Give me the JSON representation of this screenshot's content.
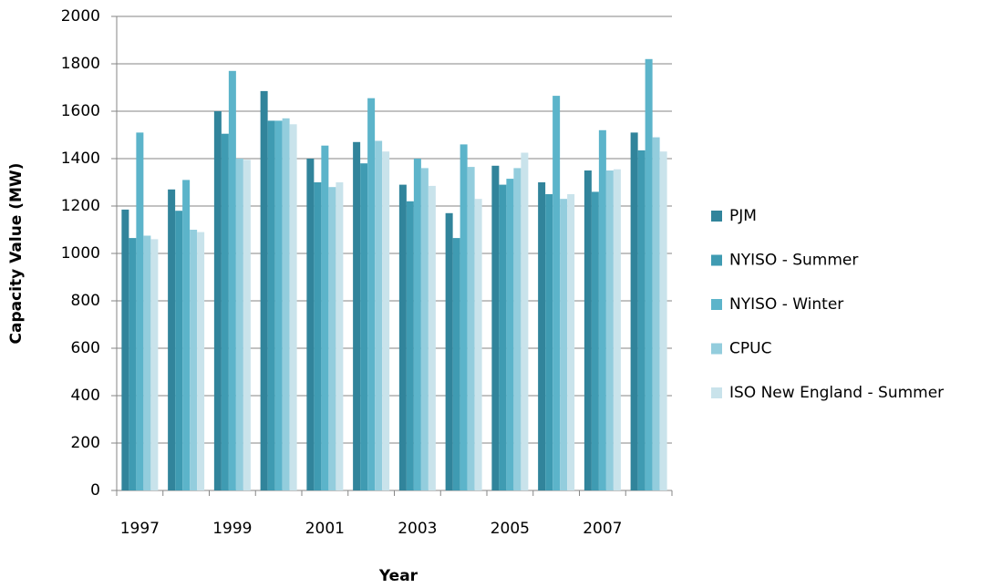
{
  "chart_data": {
    "type": "bar",
    "x_label": "Year",
    "y_label": "Capacity Value (MW)",
    "categories": [
      "1997",
      null,
      "1999",
      null,
      "2001",
      null,
      "2003",
      null,
      "2005",
      null,
      "2007",
      null
    ],
    "series": [
      {
        "name": "PJM",
        "color": "#31849b",
        "values": [
          1185,
          1270,
          1600,
          1685,
          1400,
          1470,
          1290,
          1170,
          1370,
          1300,
          1350,
          1510
        ]
      },
      {
        "name": "NYISO - Summer",
        "color": "#3f9bb2",
        "values": [
          1065,
          1180,
          1505,
          1560,
          1300,
          1380,
          1220,
          1065,
          1290,
          1250,
          1260,
          1435
        ]
      },
      {
        "name": "NYISO - Winter",
        "color": "#5cb4ca",
        "values": [
          1510,
          1310,
          1770,
          1560,
          1455,
          1655,
          1400,
          1460,
          1315,
          1665,
          1520,
          1820
        ]
      },
      {
        "name": "CPUC",
        "color": "#93cddd",
        "values": [
          1075,
          1100,
          1400,
          1570,
          1280,
          1475,
          1360,
          1365,
          1360,
          1230,
          1350,
          1490
        ]
      },
      {
        "name": "ISO New England - Summer",
        "color": "#c9e3eb",
        "values": [
          1060,
          1090,
          1395,
          1545,
          1300,
          1430,
          1285,
          1230,
          1425,
          1250,
          1355,
          1430
        ]
      }
    ],
    "ylim": [
      0,
      2000
    ],
    "yticks": [
      0,
      200,
      400,
      600,
      800,
      1000,
      1200,
      1400,
      1600,
      1800,
      2000
    ],
    "grid": true,
    "legend": "right"
  }
}
